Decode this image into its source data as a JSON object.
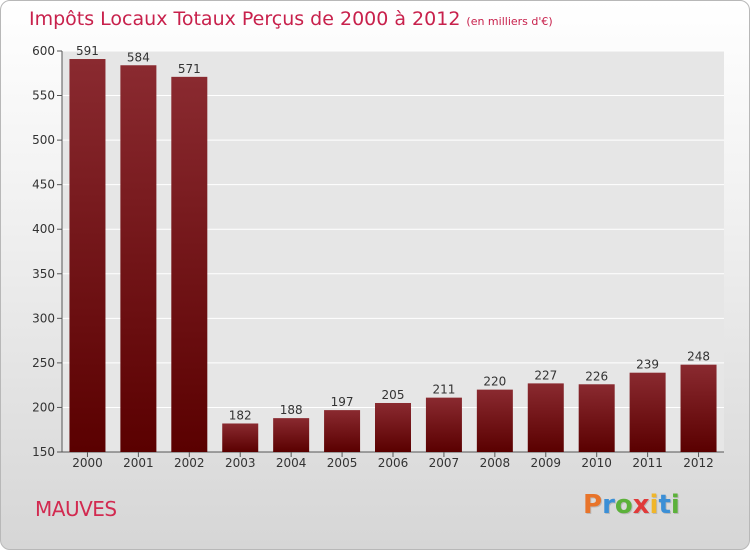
{
  "header": {
    "title": "Impôts Locaux Totaux Perçus de 2000 à 2012",
    "subtitle": "(en milliers d'€)"
  },
  "footer": {
    "city": "MAUVES",
    "logo_text": "Proxiti"
  },
  "colors": {
    "accent": "#c8214c",
    "bar_top": "#8a2a30",
    "bar_bottom": "#5a0000",
    "logo_letters": [
      "#e8742a",
      "#3b8fd6",
      "#5cb13a",
      "#e03a3a",
      "#f0b62a",
      "#3b8fd6",
      "#5cb13a"
    ]
  },
  "chart_data": {
    "type": "bar",
    "categories": [
      "2000",
      "2001",
      "2002",
      "2003",
      "2004",
      "2005",
      "2006",
      "2007",
      "2008",
      "2009",
      "2010",
      "2011",
      "2012"
    ],
    "values": [
      591,
      584,
      571,
      182,
      188,
      197,
      205,
      211,
      220,
      227,
      226,
      239,
      248
    ],
    "title": "Impôts Locaux Totaux Perçus de 2000 à 2012",
    "xlabel": "",
    "ylabel": "",
    "ylim": [
      150,
      600
    ],
    "yticks": [
      150,
      200,
      250,
      300,
      350,
      400,
      450,
      500,
      550,
      600
    ],
    "grid": true,
    "data_labels": true
  }
}
